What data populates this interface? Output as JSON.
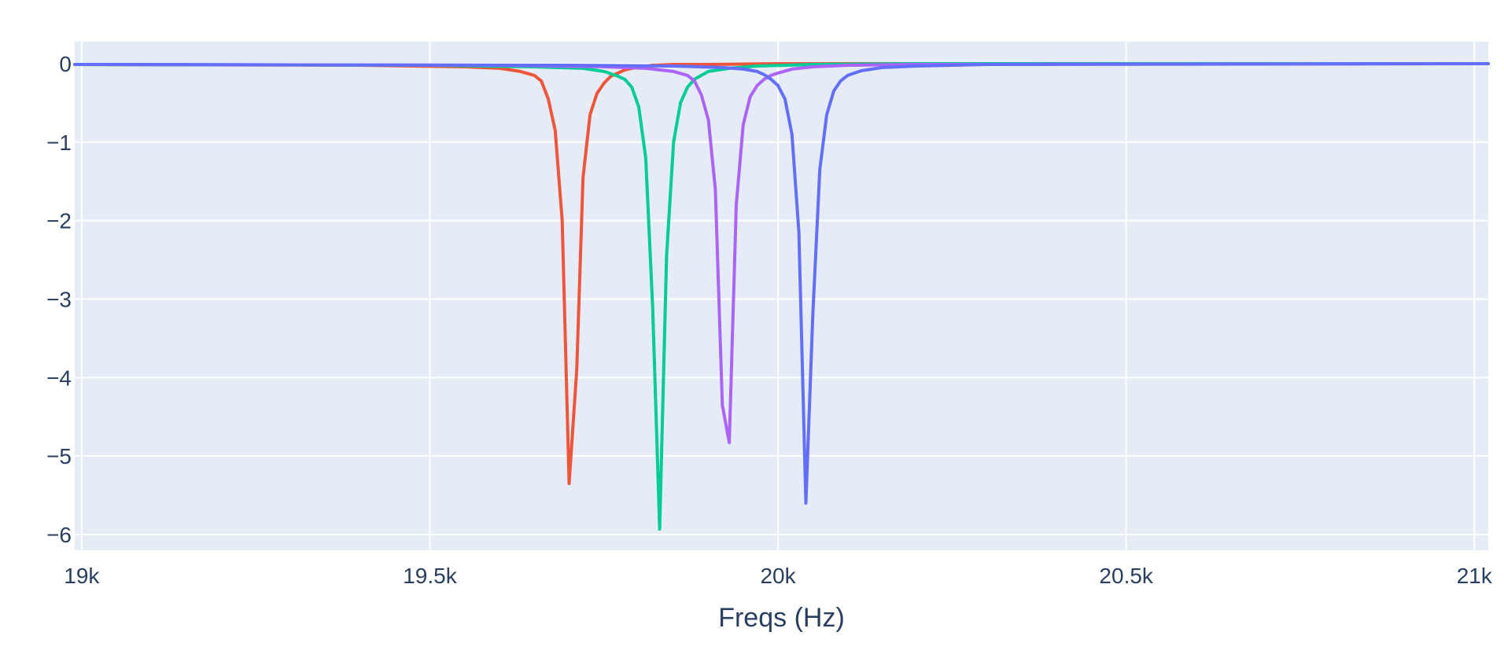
{
  "chart_data": {
    "type": "line",
    "title": "",
    "xlabel": "Freqs (Hz)",
    "ylabel": "",
    "xlim": [
      18990,
      21020
    ],
    "ylim": [
      -6.2,
      0.28
    ],
    "grid": true,
    "plot_bgcolor": "#e5ecf6",
    "x_ticks": [
      {
        "value": 19000,
        "label": "19k"
      },
      {
        "value": 19500,
        "label": "19.5k"
      },
      {
        "value": 20000,
        "label": "20k"
      },
      {
        "value": 20500,
        "label": "20.5k"
      },
      {
        "value": 21000,
        "label": "21k"
      }
    ],
    "y_ticks": [
      {
        "value": 0,
        "label": "0"
      },
      {
        "value": -1,
        "label": "−1"
      },
      {
        "value": -2,
        "label": "−2"
      },
      {
        "value": -3,
        "label": "−3"
      },
      {
        "value": -4,
        "label": "−4"
      },
      {
        "value": -5,
        "label": "−5"
      },
      {
        "value": -6,
        "label": "−6"
      }
    ],
    "series": [
      {
        "color": "#ef553b",
        "x": [
          18990,
          19400,
          19550,
          19600,
          19630,
          19650,
          19660,
          19670,
          19680,
          19690,
          19700,
          19711,
          19720,
          19730,
          19740,
          19750,
          19760,
          19770,
          19780,
          19800,
          19820,
          19850,
          19900,
          20000,
          20200,
          21020
        ],
        "y": [
          -0.01,
          -0.02,
          -0.04,
          -0.06,
          -0.1,
          -0.15,
          -0.22,
          -0.45,
          -0.85,
          -2.0,
          -5.35,
          -3.9,
          -1.45,
          -0.65,
          -0.38,
          -0.25,
          -0.16,
          -0.12,
          -0.08,
          -0.04,
          -0.02,
          -0.01,
          -0.01,
          0,
          0,
          0
        ]
      },
      {
        "color": "#00cc96",
        "x": [
          18990,
          19500,
          19650,
          19720,
          19750,
          19770,
          19780,
          19790,
          19800,
          19810,
          19820,
          19830,
          19840,
          19850,
          19860,
          19870,
          19880,
          19890,
          19900,
          19930,
          19970,
          20050,
          20200,
          21020
        ],
        "y": [
          -0.01,
          -0.02,
          -0.04,
          -0.06,
          -0.1,
          -0.16,
          -0.2,
          -0.3,
          -0.55,
          -1.2,
          -3.1,
          -5.93,
          -2.45,
          -1.0,
          -0.5,
          -0.3,
          -0.2,
          -0.15,
          -0.1,
          -0.06,
          -0.03,
          -0.01,
          0,
          0
        ]
      },
      {
        "color": "#ab63fa",
        "x": [
          18990,
          19600,
          19750,
          19810,
          19850,
          19870,
          19880,
          19890,
          19900,
          19910,
          19920,
          19930,
          19940,
          19950,
          19960,
          19970,
          19980,
          19990,
          20000,
          20020,
          20050,
          20100,
          20200,
          21020
        ],
        "y": [
          -0.01,
          -0.02,
          -0.04,
          -0.06,
          -0.1,
          -0.15,
          -0.22,
          -0.4,
          -0.72,
          -1.6,
          -4.35,
          -4.83,
          -1.8,
          -0.78,
          -0.42,
          -0.28,
          -0.2,
          -0.15,
          -0.12,
          -0.07,
          -0.04,
          -0.02,
          -0.01,
          0
        ]
      },
      {
        "color": "#636efa",
        "x": [
          18990,
          19700,
          19850,
          19920,
          19950,
          19970,
          19980,
          19990,
          20000,
          20010,
          20020,
          20030,
          20040,
          20050,
          20060,
          20070,
          20080,
          20090,
          20100,
          20120,
          20150,
          20200,
          20300,
          21020
        ],
        "y": [
          -0.01,
          -0.02,
          -0.03,
          -0.05,
          -0.07,
          -0.1,
          -0.14,
          -0.2,
          -0.28,
          -0.45,
          -0.9,
          -2.15,
          -5.6,
          -3.2,
          -1.35,
          -0.65,
          -0.35,
          -0.22,
          -0.15,
          -0.09,
          -0.05,
          -0.03,
          -0.01,
          0
        ]
      }
    ]
  }
}
